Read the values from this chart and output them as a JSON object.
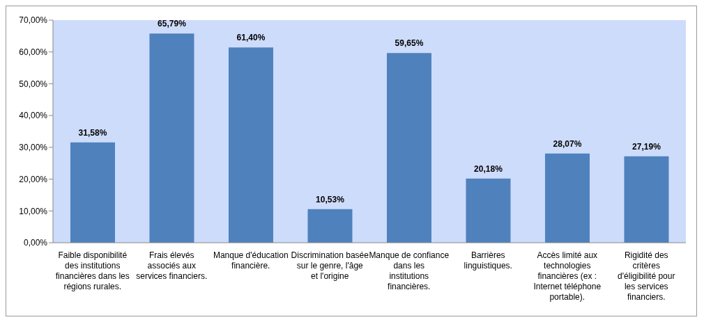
{
  "chart_data": {
    "type": "bar",
    "categories": [
      "Faible disponibilité des institutions financières dans les régions rurales.",
      "Frais élevés associés aux services financiers.",
      "Manque d'éducation financière.",
      "Discrimination basée sur le genre, l'âge et l'origine",
      "Manque de confiance dans les institutions financières.",
      "Barrières linguistiques.",
      "Accès limité aux technologies financières (ex : Internet téléphone portable).",
      "Rigidité des critères d'éligibilité pour les services financiers."
    ],
    "values": [
      31.58,
      65.79,
      61.4,
      10.53,
      59.65,
      20.18,
      28.07,
      27.19
    ],
    "value_labels": [
      "31,58%",
      "65,79%",
      "61,40%",
      "10,53%",
      "59,65%",
      "20,18%",
      "28,07%",
      "27,19%"
    ],
    "color": "#4f81bd",
    "ylim": [
      0,
      70
    ],
    "yticks": [
      {
        "value": 0,
        "label": "0,00%"
      },
      {
        "value": 10,
        "label": "10,00%"
      },
      {
        "value": 20,
        "label": "20,00%"
      },
      {
        "value": 30,
        "label": "30,00%"
      },
      {
        "value": 40,
        "label": "40,00%"
      },
      {
        "value": 50,
        "label": "50,00%"
      },
      {
        "value": 60,
        "label": "60,00%"
      },
      {
        "value": 70,
        "label": "70,00%"
      }
    ],
    "grid": false,
    "legend": false
  }
}
